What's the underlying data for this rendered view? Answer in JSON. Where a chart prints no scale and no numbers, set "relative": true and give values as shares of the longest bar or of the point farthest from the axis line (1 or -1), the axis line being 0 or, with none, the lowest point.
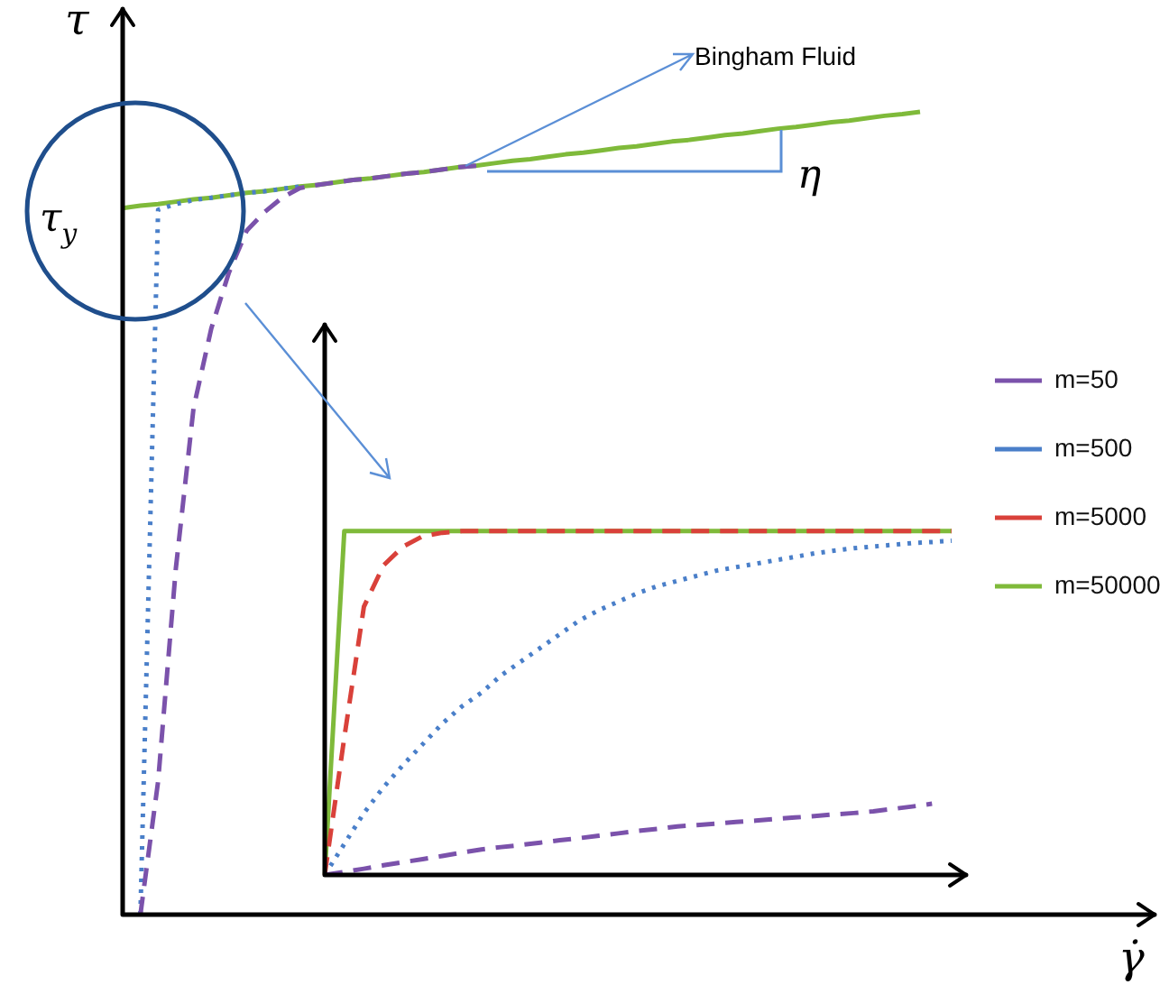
{
  "chart_data": [
    {
      "type": "line",
      "relative": true,
      "xlabel": "γ̇",
      "ylabel": "τ",
      "legend": false,
      "annotations": [
        "Bingham Fluid",
        "τ$_{y}$",
        "η"
      ],
      "categories": [
        null,
        null,
        null,
        null,
        null,
        null,
        null,
        null,
        null,
        null,
        null,
        null,
        null,
        null,
        null,
        null,
        null,
        null,
        null,
        null,
        null,
        null,
        null,
        null,
        null,
        null,
        null,
        null,
        null,
        null,
        null,
        null,
        null,
        null,
        null,
        null,
        null,
        null,
        null,
        null,
        null,
        null,
        null,
        null,
        null,
        null
      ],
      "series": [
        {
          "color": "#7b52ab",
          "line_style": "dashed",
          "values": [
            null,
            0,
            0.166,
            0.431,
            0.631,
            0.73,
            0.8,
            0.852,
            0.875,
            0.893,
            0.905,
            0.909,
            0.912,
            0.915,
            0.917,
            0.92,
            0.923,
            0.925,
            0.928,
            0.931,
            0.933,
            null,
            null,
            null,
            null,
            null,
            null,
            null,
            null,
            null,
            null,
            null,
            null,
            null,
            null,
            null,
            null,
            null,
            null,
            null,
            null,
            null,
            null,
            null,
            null,
            null
          ]
        },
        {
          "color": "#4a7fc9",
          "line_style": "dotted",
          "values": [
            null,
            0,
            0.878,
            0.885,
            0.89,
            0.893,
            0.896,
            0.899,
            0.901,
            0.904,
            0.907,
            null,
            null,
            null,
            null,
            null,
            null,
            null,
            null,
            null,
            null,
            null,
            null,
            null,
            null,
            null,
            null,
            null,
            null,
            null,
            null,
            null,
            null,
            null,
            null,
            null,
            null,
            null,
            null,
            null,
            null,
            null,
            null,
            null,
            null,
            null
          ]
        },
        {
          "color": "#7fba3a",
          "line_style": "solid",
          "values": [
            0.88,
            0.883,
            0.885,
            0.888,
            0.891,
            0.893,
            0.896,
            0.899,
            0.901,
            0.904,
            0.907,
            0.909,
            0.912,
            0.915,
            0.917,
            0.92,
            0.923,
            0.925,
            0.928,
            0.931,
            0.933,
            0.936,
            0.939,
            0.941,
            0.944,
            0.947,
            0.949,
            0.952,
            0.955,
            0.957,
            0.96,
            0.963,
            0.965,
            0.968,
            0.971,
            0.973,
            0.976,
            0.979,
            0.981,
            0.984,
            0.987,
            0.989,
            0.992,
            0.995,
            0.997,
            1
          ]
        }
      ]
    },
    {
      "type": "line",
      "relative": true,
      "legend": "right",
      "categories": [
        null,
        null,
        null,
        null,
        null,
        null,
        null,
        null,
        null,
        null,
        null,
        null,
        null,
        null,
        null,
        null,
        null,
        null,
        null,
        null,
        null,
        null,
        null,
        null,
        null,
        null,
        null,
        null,
        null,
        null,
        null,
        null,
        null
      ],
      "series": [
        {
          "name": "m=50",
          "color": "#7b52ab",
          "line_style": "dashed",
          "values": [
            0,
            0.009,
            0.018,
            0.028,
            0.037,
            0.046,
            0.055,
            0.065,
            0.074,
            0.081,
            0.087,
            0.094,
            0.101,
            0.107,
            0.114,
            0.121,
            0.128,
            0.134,
            0.141,
            0.145,
            0.149,
            0.154,
            0.158,
            0.163,
            0.167,
            0.171,
            0.176,
            0.18,
            0.185,
            0.192,
            0.199,
            0.207,
            null
          ]
        },
        {
          "name": "m=500",
          "color": "#4a7fc9",
          "line_style": "dotted",
          "values": [
            0,
            0.09,
            0.18,
            0.255,
            0.32,
            0.38,
            0.44,
            0.49,
            0.53,
            0.58,
            0.62,
            0.66,
            0.7,
            0.74,
            0.77,
            0.795,
            0.82,
            0.84,
            0.855,
            0.87,
            0.885,
            0.895,
            0.905,
            0.915,
            0.925,
            0.935,
            0.943,
            0.95,
            0.955,
            0.96,
            0.965,
            0.968,
            0.972
          ]
        },
        {
          "name": "m=5000",
          "color": "#d9413a",
          "line_style": "dashed",
          "values": [
            0,
            0.4,
            0.78,
            0.9,
            0.955,
            0.985,
            0.995,
            1,
            1,
            1,
            1,
            1,
            1,
            1,
            1,
            1,
            1,
            1,
            1,
            1,
            1,
            1,
            1,
            1,
            1,
            1,
            1,
            1,
            1,
            1,
            1,
            1,
            1
          ]
        },
        {
          "name": "m=50000",
          "color": "#7fba3a",
          "line_style": "solid",
          "values": [
            0,
            1,
            1,
            1,
            1,
            1,
            1,
            1,
            1,
            1,
            1,
            1,
            1,
            1,
            1,
            1,
            1,
            1,
            1,
            1,
            1,
            1,
            1,
            1,
            1,
            1,
            1,
            1,
            1,
            1,
            1,
            1,
            1
          ]
        }
      ]
    }
  ]
}
